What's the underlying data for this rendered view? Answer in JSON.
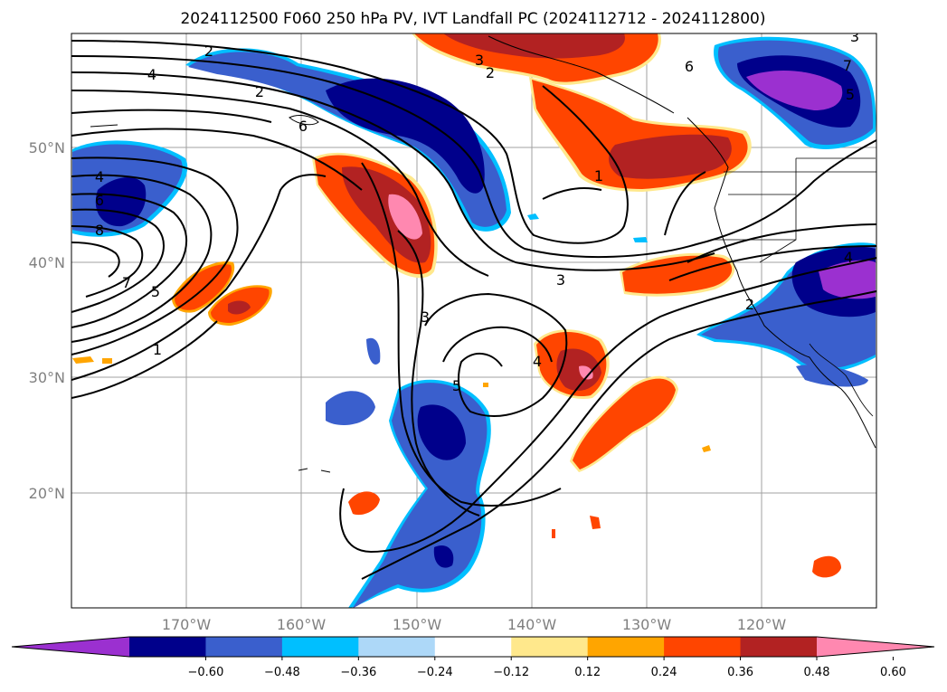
{
  "title": "2024112500 F060 250 hPa PV, IVT Landfall PC (2024112712 - 2024112800)",
  "map": {
    "lat_labels": [
      "50°N",
      "40°N",
      "30°N",
      "20°N"
    ],
    "lon_labels": [
      "170°W",
      "160°W",
      "150°W",
      "140°W",
      "130°W",
      "120°W"
    ],
    "contour_labels": [
      "2",
      "4",
      "6",
      "4",
      "6",
      "8",
      "7",
      "5",
      "1",
      "3",
      "2",
      "6",
      "7",
      "5",
      "1",
      "3",
      "2",
      "3",
      "5",
      "4",
      "2",
      "3",
      "4"
    ]
  },
  "colorbar": {
    "ticks": [
      "−0.60",
      "−0.48",
      "−0.36",
      "−0.24",
      "−0.12",
      "0.12",
      "0.24",
      "0.36",
      "0.48",
      "0.60"
    ],
    "colors": [
      "#9b30d0",
      "#00008b",
      "#3a5fcd",
      "#00bfff",
      "#add8f8",
      "#ffffff",
      "#ffe88c",
      "#ffa500",
      "#ff4500",
      "#b22222",
      "#ff88b0"
    ]
  }
}
